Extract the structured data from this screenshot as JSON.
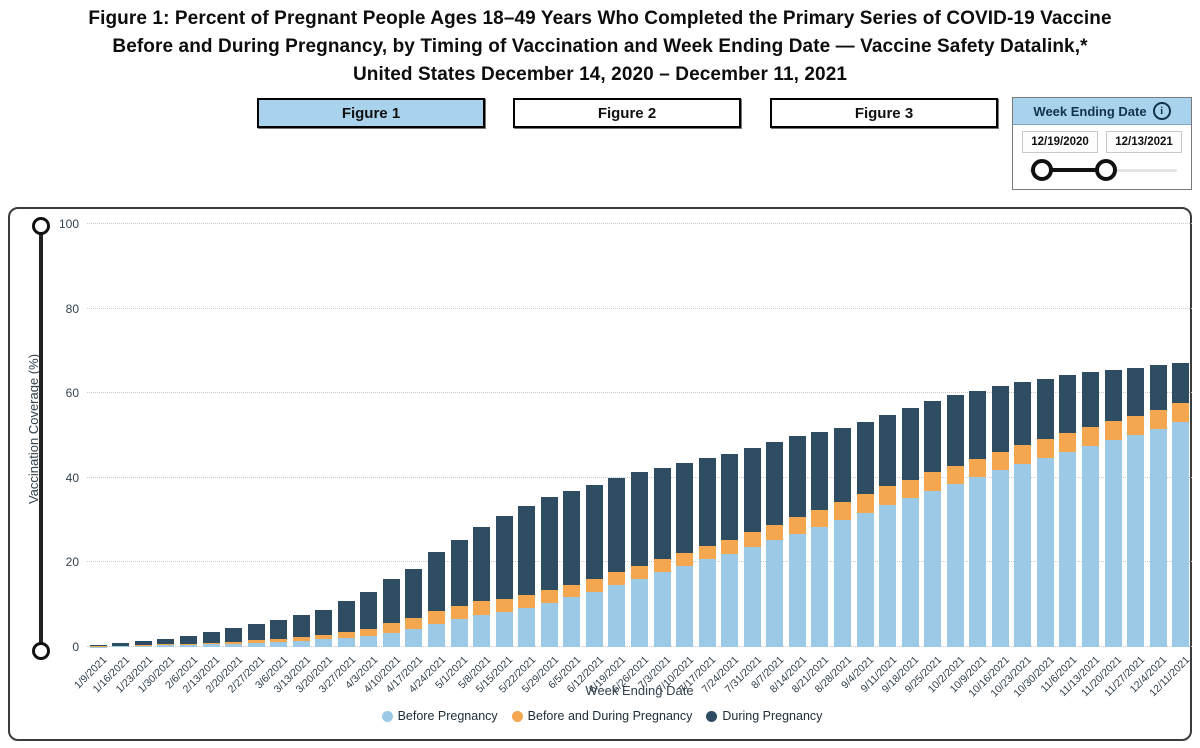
{
  "title": {
    "line1": "Figure 1: Percent of Pregnant People Ages 18–49 Years Who Completed the Primary Series of COVID-19 Vaccine",
    "line2": "Before and During Pregnancy, by Timing of Vaccination and Week Ending Date — Vaccine Safety Datalink,*",
    "line3": "United States December 14, 2020 – December 11, 2021"
  },
  "figure_tabs": [
    {
      "label": "Figure 1",
      "active": true
    },
    {
      "label": "Figure 2",
      "active": false
    },
    {
      "label": "Figure 3",
      "active": false
    }
  ],
  "week_slider": {
    "title": "Week Ending Date",
    "icon": "info-icon",
    "start_date": "12/19/2020",
    "end_date": "12/13/2021"
  },
  "colors": {
    "before_pregnancy": "#9CC9E5",
    "before_and_during": "#F4A74E",
    "during_pregnancy": "#2E4D63",
    "active_tab_bg": "#A9D2EC",
    "gridline": "#C9C9C9"
  },
  "chart_data": {
    "type": "bar",
    "stacked": true,
    "xlabel": "Week Ending Date",
    "ylabel": "Vaccination Coverage (%)",
    "ylim": [
      0,
      100
    ],
    "yticks": [
      0,
      20,
      40,
      60,
      80,
      100
    ],
    "grid": "horizontal-dotted",
    "legend_position": "bottom",
    "categories": [
      "1/9/2021",
      "1/16/2021",
      "1/23/2021",
      "1/30/2021",
      "2/6/2021",
      "2/13/2021",
      "2/20/2021",
      "2/27/2021",
      "3/6/2021",
      "3/13/2021",
      "3/20/2021",
      "3/27/2021",
      "4/3/2021",
      "4/10/2021",
      "4/17/2021",
      "4/24/2021",
      "5/1/2021",
      "5/8/2021",
      "5/15/2021",
      "5/22/2021",
      "5/29/2021",
      "6/5/2021",
      "6/12/2021",
      "6/19/2021",
      "6/26/2021",
      "7/3/2021",
      "7/10/2021",
      "7/17/2021",
      "7/24/2021",
      "7/31/2021",
      "8/7/2021",
      "8/14/2021",
      "8/21/2021",
      "8/28/2021",
      "9/4/2021",
      "9/11/2021",
      "9/18/2021",
      "9/25/2021",
      "10/2/2021",
      "10/9/2021",
      "10/16/2021",
      "10/23/2021",
      "10/30/2021",
      "11/6/2021",
      "11/13/2021",
      "11/20/2021",
      "11/27/2021",
      "12/4/2021",
      "12/11/2021"
    ],
    "series": [
      {
        "name": "Before Pregnancy",
        "color": "#9CC9E5",
        "values": [
          0.1,
          0.2,
          0.3,
          0.4,
          0.5,
          0.6,
          0.8,
          1.0,
          1.2,
          1.5,
          1.8,
          2.1,
          2.5,
          3.4,
          4.2,
          5.5,
          6.7,
          7.6,
          8.3,
          9.3,
          10.5,
          11.8,
          13.1,
          14.7,
          16.1,
          17.7,
          19.1,
          20.7,
          22.1,
          23.6,
          25.2,
          26.8,
          28.4,
          30.1,
          31.7,
          33.5,
          35.2,
          37.0,
          38.6,
          40.2,
          41.8,
          43.3,
          44.8,
          46.2,
          47.6,
          48.9,
          50.1,
          51.5,
          53.2
        ]
      },
      {
        "name": "Before and During Pregnancy",
        "color": "#F4A74E",
        "values": [
          0.1,
          0.1,
          0.2,
          0.2,
          0.3,
          0.4,
          0.5,
          0.6,
          0.8,
          0.9,
          1.1,
          1.4,
          1.8,
          2.3,
          2.7,
          2.9,
          3.0,
          3.2,
          3.0,
          2.9,
          2.9,
          2.9,
          3.0,
          3.0,
          3.0,
          3.0,
          3.1,
          3.1,
          3.3,
          3.5,
          3.7,
          3.9,
          4.1,
          4.3,
          4.5,
          4.5,
          4.4,
          4.4,
          4.2,
          4.3,
          4.3,
          4.4,
          4.4,
          4.5,
          4.5,
          4.5,
          4.5,
          4.5,
          4.4
        ]
      },
      {
        "name": "During Pregnancy",
        "color": "#2E4D63",
        "values": [
          0.2,
          0.6,
          0.9,
          1.3,
          1.8,
          2.5,
          3.2,
          3.9,
          4.5,
          5.1,
          5.8,
          7.4,
          8.7,
          10.3,
          11.6,
          14.0,
          15.5,
          17.5,
          19.7,
          21.1,
          22.0,
          22.3,
          22.3,
          22.3,
          22.2,
          21.7,
          21.3,
          20.8,
          20.2,
          19.9,
          19.6,
          19.1,
          18.3,
          17.4,
          17.0,
          16.9,
          16.9,
          16.7,
          16.7,
          16.0,
          15.6,
          15.0,
          14.2,
          13.5,
          12.9,
          12.1,
          11.3,
          10.6,
          9.6
        ]
      }
    ]
  }
}
